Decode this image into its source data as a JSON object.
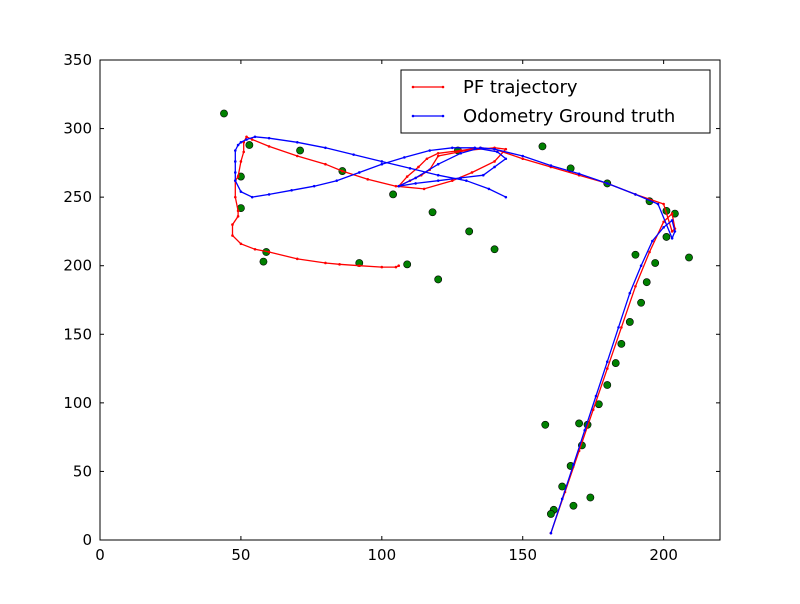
{
  "chart_data": {
    "type": "line",
    "title": "",
    "xlabel": "",
    "ylabel": "",
    "xlim": [
      0,
      220
    ],
    "ylim": [
      0,
      350
    ],
    "xticks": [
      0,
      50,
      100,
      150,
      200
    ],
    "yticks": [
      0,
      50,
      100,
      150,
      200,
      250,
      300,
      350
    ],
    "xtick_labels": [
      "0",
      "50",
      "100",
      "150",
      "200"
    ],
    "ytick_labels": [
      "0",
      "50",
      "100",
      "150",
      "200",
      "250",
      "300",
      "350"
    ],
    "grid": false,
    "legend": {
      "position": "upper right",
      "entries": [
        "PF trajectory",
        "Odometry Ground truth"
      ]
    },
    "series": [
      {
        "name": "PF trajectory",
        "color": "#ff0000",
        "marker": "dot",
        "x": [
          160,
          165,
          170,
          175,
          180,
          185,
          190,
          195,
          200,
          203,
          204,
          203,
          200,
          190,
          180,
          170,
          160,
          150,
          140,
          135,
          128,
          120,
          116,
          113,
          109,
          106,
          110,
          114,
          117,
          120,
          130,
          140,
          144,
          140,
          132,
          125,
          115,
          105,
          95,
          86,
          80,
          70,
          60,
          54,
          52,
          51,
          51,
          50,
          49,
          48,
          48,
          49,
          49,
          47,
          47,
          50,
          55,
          60,
          70,
          80,
          85,
          92,
          100,
          105,
          106
        ],
        "y": [
          5,
          35,
          65,
          95,
          125,
          155,
          185,
          210,
          232,
          238,
          227,
          225,
          245,
          252,
          260,
          266,
          272,
          278,
          285,
          286,
          284,
          282,
          278,
          272,
          265,
          258,
          262,
          266,
          270,
          280,
          284,
          286,
          285,
          276,
          268,
          262,
          256,
          258,
          263,
          269,
          274,
          280,
          287,
          292,
          294,
          290,
          283,
          276,
          265,
          262,
          250,
          240,
          236,
          230,
          222,
          216,
          212,
          210,
          205,
          202,
          201,
          200,
          199,
          199,
          200
        ]
      },
      {
        "name": "Odometry Ground truth",
        "color": "#0000ff",
        "marker": "dot",
        "x": [
          160,
          164,
          168,
          172,
          176,
          180,
          184,
          188,
          192,
          196,
          200,
          203,
          204,
          203,
          198,
          190,
          180,
          170,
          160,
          150,
          140,
          135,
          128,
          120,
          112,
          106,
          112,
          120,
          128,
          136,
          140,
          144,
          141,
          133,
          125,
          117,
          108,
          100,
          92,
          84,
          76,
          68,
          60,
          54,
          50,
          48,
          48,
          48,
          48,
          49,
          50,
          52,
          55,
          60,
          70,
          80,
          90,
          100,
          110,
          120,
          130,
          138,
          144
        ],
        "y": [
          5,
          30,
          55,
          80,
          105,
          130,
          155,
          180,
          200,
          218,
          228,
          233,
          225,
          220,
          245,
          252,
          260,
          267,
          273,
          280,
          285,
          286,
          282,
          274,
          264,
          258,
          260,
          262,
          264,
          266,
          272,
          278,
          283,
          286,
          286,
          284,
          279,
          274,
          268,
          262,
          258,
          255,
          252,
          250,
          254,
          262,
          268,
          276,
          284,
          288,
          290,
          292,
          294,
          293,
          290,
          286,
          281,
          276,
          271,
          266,
          262,
          256,
          250
        ]
      }
    ],
    "landmarks": {
      "name": "",
      "color": "#008000",
      "x": [
        44,
        53,
        71,
        86,
        104,
        118,
        131,
        140,
        120,
        109,
        92,
        59,
        58,
        50,
        50,
        127,
        157,
        167,
        180,
        195,
        201,
        204,
        201,
        209,
        190,
        197,
        194,
        192,
        188,
        185,
        183,
        180,
        177,
        173,
        170,
        171,
        167,
        164,
        174,
        168,
        161,
        160,
        158
      ],
      "y": [
        311,
        288,
        284,
        269,
        252,
        239,
        225,
        212,
        190,
        201,
        202,
        210,
        203,
        265,
        242,
        284,
        287,
        271,
        260,
        247,
        240,
        238,
        221,
        206,
        208,
        202,
        188,
        173,
        159,
        143,
        129,
        113,
        99,
        84,
        85,
        69,
        54,
        39,
        31,
        25,
        22,
        19,
        84
      ]
    }
  }
}
